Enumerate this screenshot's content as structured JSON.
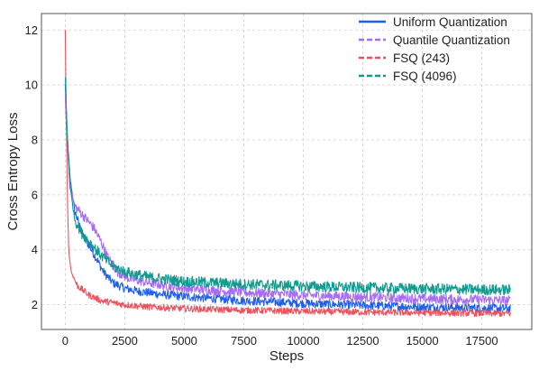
{
  "chart_data": {
    "type": "line",
    "title": "",
    "xlabel": "Steps",
    "ylabel": "Cross Entropy Loss",
    "xlim": [
      -1000,
      19600
    ],
    "ylim": [
      1.1,
      12.6
    ],
    "xticks": [
      0,
      2500,
      5000,
      7500,
      10000,
      12500,
      15000,
      17500
    ],
    "xtick_labels": [
      "0",
      "2500",
      "5000",
      "7500",
      "10000",
      "12500",
      "15000",
      "17500"
    ],
    "yticks": [
      2,
      4,
      6,
      8,
      10,
      12
    ],
    "ytick_labels": [
      "2",
      "4",
      "6",
      "8",
      "10",
      "12"
    ],
    "grid": true,
    "legend_position": "top-right",
    "series": [
      {
        "name": "Uniform Quantization",
        "color": "#1f5ef0",
        "dash": "solid",
        "noise": 0.16,
        "points": [
          [
            0,
            10.0
          ],
          [
            80,
            8.2
          ],
          [
            200,
            6.6
          ],
          [
            400,
            5.4
          ],
          [
            700,
            4.6
          ],
          [
            1000,
            4.15
          ],
          [
            1300,
            3.7
          ],
          [
            1600,
            3.2
          ],
          [
            2000,
            2.8
          ],
          [
            2500,
            2.6
          ],
          [
            3000,
            2.5
          ],
          [
            4000,
            2.38
          ],
          [
            5000,
            2.3
          ],
          [
            7500,
            2.15
          ],
          [
            10000,
            2.05
          ],
          [
            12500,
            1.98
          ],
          [
            15000,
            1.92
          ],
          [
            17500,
            1.88
          ],
          [
            18700,
            1.86
          ]
        ]
      },
      {
        "name": "Quantile Quantization",
        "color": "#a66cf5",
        "dash": "dashed",
        "noise": 0.18,
        "points": [
          [
            0,
            9.6
          ],
          [
            80,
            7.9
          ],
          [
            200,
            6.3
          ],
          [
            400,
            5.6
          ],
          [
            800,
            5.2
          ],
          [
            1200,
            4.8
          ],
          [
            1500,
            4.3
          ],
          [
            1800,
            3.7
          ],
          [
            2200,
            3.2
          ],
          [
            2700,
            2.95
          ],
          [
            3500,
            2.8
          ],
          [
            5000,
            2.6
          ],
          [
            7500,
            2.45
          ],
          [
            10000,
            2.35
          ],
          [
            12500,
            2.28
          ],
          [
            15000,
            2.22
          ],
          [
            17500,
            2.18
          ],
          [
            18700,
            2.15
          ]
        ]
      },
      {
        "name": "FSQ (243)",
        "color": "#f0505c",
        "dash": "dashed",
        "noise": 0.12,
        "points": [
          [
            0,
            12.0
          ],
          [
            40,
            9.0
          ],
          [
            100,
            5.5
          ],
          [
            150,
            3.9
          ],
          [
            250,
            3.2
          ],
          [
            500,
            2.7
          ],
          [
            1000,
            2.35
          ],
          [
            1500,
            2.15
          ],
          [
            2500,
            2.0
          ],
          [
            3500,
            1.92
          ],
          [
            5000,
            1.86
          ],
          [
            7500,
            1.8
          ],
          [
            10000,
            1.76
          ],
          [
            12500,
            1.73
          ],
          [
            15000,
            1.71
          ],
          [
            17500,
            1.69
          ],
          [
            18700,
            1.68
          ]
        ]
      },
      {
        "name": "FSQ (4096)",
        "color": "#0f9b8e",
        "dash": "dashed",
        "noise": 0.2,
        "points": [
          [
            0,
            10.3
          ],
          [
            80,
            8.3
          ],
          [
            200,
            6.3
          ],
          [
            400,
            5.1
          ],
          [
            700,
            4.6
          ],
          [
            1000,
            4.3
          ],
          [
            1500,
            3.8
          ],
          [
            2000,
            3.4
          ],
          [
            2500,
            3.2
          ],
          [
            3500,
            3.0
          ],
          [
            5000,
            2.85
          ],
          [
            7500,
            2.75
          ],
          [
            10000,
            2.68
          ],
          [
            12500,
            2.62
          ],
          [
            15000,
            2.58
          ],
          [
            17500,
            2.55
          ],
          [
            18700,
            2.54
          ]
        ]
      }
    ]
  }
}
